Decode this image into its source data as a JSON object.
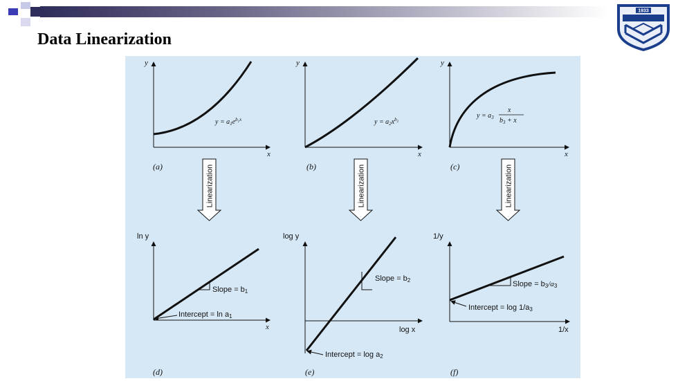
{
  "slide": {
    "title": "Data Linearization"
  },
  "colors": {
    "figure_background": "#d6e8f6",
    "header_bar": "#2e2c5a",
    "accent_square": "#3a3bb5",
    "logo_blue": "#1a3e8c"
  },
  "logo": {
    "year": "1933"
  },
  "panels": {
    "a": {
      "label": "(a)",
      "ylabel": "y",
      "xlabel": "x",
      "eq_lhs": "y = a",
      "eq_sub": "1",
      "eq_e": "e",
      "eq_exp": "b",
      "eq_exp_sub": "1",
      "eq_exp_x": "x"
    },
    "b": {
      "label": "(b)",
      "ylabel": "y",
      "xlabel": "x",
      "eq_lhs": "y = a",
      "eq_sub": "2",
      "eq_x": "x",
      "eq_exp": "b",
      "eq_exp_sub": "2"
    },
    "c": {
      "label": "(c)",
      "ylabel": "y",
      "xlabel": "x",
      "eq_lhs": "y = a",
      "eq_sub": "3",
      "eq_num": "x",
      "eq_den_b": "b",
      "eq_den_sub": "3",
      "eq_den_rest": " + x"
    },
    "d": {
      "label": "(d)",
      "ylabel": "ln y",
      "xlabel": "x",
      "slope_text": "Slope = b",
      "slope_sub": "1",
      "intercept_text": "Intercept = ln a",
      "intercept_sub": "1"
    },
    "e": {
      "label": "(e)",
      "ylabel": "log y",
      "xlabel": "log x",
      "slope_text": "Slope = b",
      "slope_sub": "2",
      "intercept_text": "Intercept = log a",
      "intercept_sub": "2"
    },
    "f": {
      "label": "(f)",
      "ylabel": "1/y",
      "xlabel": "1/x",
      "slope_text": "Slope = b",
      "slope_sub": "3",
      "slope_tail": "/a",
      "slope_tail_sub": "3",
      "intercept_text": "Intercept = log 1/a",
      "intercept_sub": "3"
    }
  },
  "arrows": {
    "label": "Linearization"
  }
}
